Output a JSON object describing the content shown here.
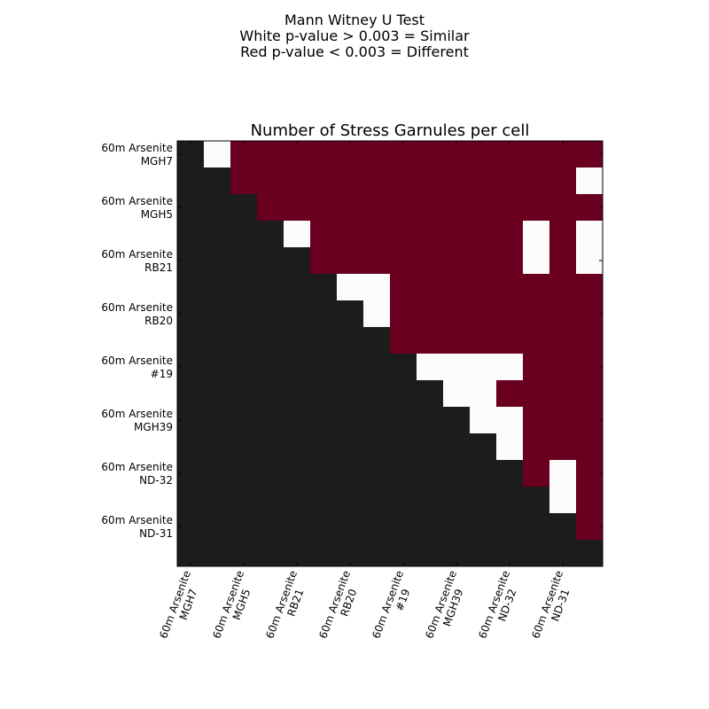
{
  "chart_data": {
    "type": "heatmap",
    "suptitle_lines": [
      "Mann Witney U Test",
      "White p-value > 0.003 = Similar",
      "Red p-value < 0.003 = Different"
    ],
    "title": "Number of Stress Garnules per cell",
    "xlabel": "",
    "ylabel": "",
    "tick_labels": [
      [
        "60m Arsenite",
        "MGH7"
      ],
      [
        "60m Arsenite",
        "MGH5"
      ],
      [
        "60m Arsenite",
        "RB21"
      ],
      [
        "60m Arsenite",
        "RB20"
      ],
      [
        "60m Arsenite",
        "#19"
      ],
      [
        "60m Arsenite",
        "MGH39"
      ],
      [
        "60m Arsenite",
        "ND-32"
      ],
      [
        "60m Arsenite",
        "ND-31"
      ]
    ],
    "grid_size": 16,
    "ticks_every": 2,
    "legend": {
      "similar": "White p-value > 0.003",
      "different": "Red p-value < 0.003",
      "lower_triangle": "not shown"
    },
    "colors": {
      "similar": "#fcfcfc",
      "different": "#6a0020",
      "masked": "#1c1c1c"
    },
    "cells": [
      [
        0,
        1,
        2,
        2,
        2,
        2,
        2,
        2,
        2,
        2,
        2,
        2,
        2,
        2,
        2,
        2
      ],
      [
        0,
        0,
        2,
        2,
        2,
        2,
        2,
        2,
        2,
        2,
        2,
        2,
        2,
        2,
        2,
        1
      ],
      [
        0,
        0,
        0,
        2,
        2,
        2,
        2,
        2,
        2,
        2,
        2,
        2,
        2,
        2,
        2,
        2
      ],
      [
        0,
        0,
        0,
        0,
        1,
        2,
        2,
        2,
        2,
        2,
        2,
        2,
        2,
        1,
        2,
        1
      ],
      [
        0,
        0,
        0,
        0,
        0,
        2,
        2,
        2,
        2,
        2,
        2,
        2,
        2,
        1,
        2,
        1
      ],
      [
        0,
        0,
        0,
        0,
        0,
        0,
        1,
        1,
        2,
        2,
        2,
        2,
        2,
        2,
        2,
        2
      ],
      [
        0,
        0,
        0,
        0,
        0,
        0,
        0,
        1,
        2,
        2,
        2,
        2,
        2,
        2,
        2,
        2
      ],
      [
        0,
        0,
        0,
        0,
        0,
        0,
        0,
        0,
        2,
        2,
        2,
        2,
        2,
        2,
        2,
        2
      ],
      [
        0,
        0,
        0,
        0,
        0,
        0,
        0,
        0,
        0,
        1,
        1,
        1,
        1,
        2,
        2,
        2
      ],
      [
        0,
        0,
        0,
        0,
        0,
        0,
        0,
        0,
        0,
        0,
        1,
        1,
        2,
        2,
        2,
        2
      ],
      [
        0,
        0,
        0,
        0,
        0,
        0,
        0,
        0,
        0,
        0,
        0,
        1,
        1,
        2,
        2,
        2
      ],
      [
        0,
        0,
        0,
        0,
        0,
        0,
        0,
        0,
        0,
        0,
        0,
        0,
        1,
        2,
        2,
        2
      ],
      [
        0,
        0,
        0,
        0,
        0,
        0,
        0,
        0,
        0,
        0,
        0,
        0,
        0,
        2,
        1,
        2
      ],
      [
        0,
        0,
        0,
        0,
        0,
        0,
        0,
        0,
        0,
        0,
        0,
        0,
        0,
        0,
        1,
        2
      ],
      [
        0,
        0,
        0,
        0,
        0,
        0,
        0,
        0,
        0,
        0,
        0,
        0,
        0,
        0,
        0,
        2
      ],
      [
        0,
        0,
        0,
        0,
        0,
        0,
        0,
        0,
        0,
        0,
        0,
        0,
        0,
        0,
        0,
        0
      ]
    ]
  }
}
